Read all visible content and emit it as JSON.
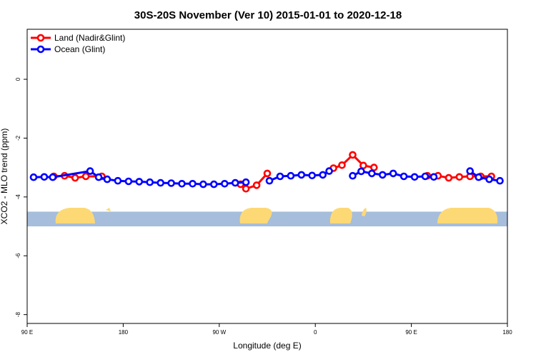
{
  "chart_data": {
    "type": "line",
    "title": "30S-20S November (Ver 10)   2015-01-01 to 2020-12-18",
    "xlabel": "Longitude (deg E)",
    "ylabel": "XCO2 - MLO trend (ppm)",
    "xlim": [
      90,
      540
    ],
    "ylim": [
      -8.3,
      1.7
    ],
    "x_ticks": [
      {
        "value": 90,
        "label": "90 E"
      },
      {
        "value": 180,
        "label": "180"
      },
      {
        "value": 270,
        "label": "90 W"
      },
      {
        "value": 360,
        "label": "0"
      },
      {
        "value": 450,
        "label": "90 E"
      },
      {
        "value": 540,
        "label": "180"
      }
    ],
    "y_ticks": [
      0,
      -2,
      -4,
      -6,
      -8
    ],
    "grid": false,
    "legend_position": "top-left",
    "series": [
      {
        "name": "Land (Nadir&Glint)",
        "color": "#ff0000",
        "segments": [
          [
            [
              115,
              -3.3
            ],
            [
              125,
              -3.28
            ],
            [
              135,
              -3.35
            ],
            [
              145,
              -3.3
            ],
            [
              160,
              -3.3
            ]
          ],
          [
            [
              290,
              -3.57
            ],
            [
              295,
              -3.72
            ],
            [
              305,
              -3.6
            ],
            [
              315,
              -3.2
            ]
          ],
          [
            [
              377,
              -3.02
            ],
            [
              385,
              -2.92
            ],
            [
              395,
              -2.57
            ],
            [
              405,
              -2.93
            ],
            [
              415,
              -3.0
            ]
          ],
          [
            [
              465,
              -3.28
            ],
            [
              475,
              -3.28
            ],
            [
              485,
              -3.35
            ],
            [
              495,
              -3.32
            ],
            [
              505,
              -3.3
            ],
            [
              515,
              -3.3
            ],
            [
              525,
              -3.3
            ]
          ]
        ]
      },
      {
        "name": "Ocean (Glint)",
        "color": "#0000ff",
        "segments": [
          [
            [
              96,
              -3.33
            ],
            [
              106,
              -3.32
            ],
            [
              114,
              -3.33
            ],
            [
              149,
              -3.12
            ],
            [
              157,
              -3.33
            ],
            [
              165,
              -3.4
            ],
            [
              175,
              -3.45
            ],
            [
              185,
              -3.47
            ],
            [
              195,
              -3.48
            ],
            [
              205,
              -3.5
            ],
            [
              215,
              -3.52
            ],
            [
              225,
              -3.53
            ],
            [
              235,
              -3.55
            ],
            [
              245,
              -3.55
            ],
            [
              255,
              -3.57
            ],
            [
              265,
              -3.57
            ],
            [
              275,
              -3.55
            ],
            [
              285,
              -3.52
            ],
            [
              295,
              -3.5
            ]
          ],
          [
            [
              317,
              -3.45
            ],
            [
              327,
              -3.3
            ],
            [
              337,
              -3.28
            ],
            [
              347,
              -3.25
            ],
            [
              357,
              -3.27
            ],
            [
              367,
              -3.25
            ],
            [
              373,
              -3.12
            ]
          ],
          [
            [
              395,
              -3.28
            ],
            [
              403,
              -3.13
            ],
            [
              413,
              -3.2
            ],
            [
              423,
              -3.25
            ],
            [
              433,
              -3.2
            ],
            [
              443,
              -3.3
            ],
            [
              453,
              -3.32
            ],
            [
              463,
              -3.3
            ],
            [
              471,
              -3.32
            ]
          ],
          [
            [
              505,
              -3.12
            ],
            [
              513,
              -3.33
            ],
            [
              523,
              -3.4
            ],
            [
              533,
              -3.45
            ]
          ]
        ]
      }
    ],
    "land_mask_strip": {
      "ymin": -5.0,
      "ymax": -4.5,
      "ocean_color": "#a6bddb",
      "land_color": "#fdd976"
    }
  }
}
